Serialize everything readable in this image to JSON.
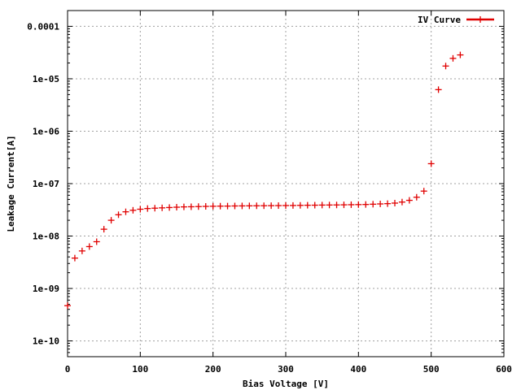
{
  "chart_data": {
    "type": "scatter",
    "title": "",
    "xlabel": "Bias Voltage [V]",
    "ylabel": "Leakage Current[A]",
    "xlim": [
      0,
      600
    ],
    "ylim": [
      5e-11,
      0.0002
    ],
    "yscale": "log",
    "grid": true,
    "legend_position": "top-right",
    "x_ticks": [
      0,
      100,
      200,
      300,
      400,
      500,
      600
    ],
    "x_tick_labels": [
      "0",
      "100",
      "200",
      "300",
      "400",
      "500",
      "600"
    ],
    "y_ticks": [
      1e-10,
      1e-09,
      1e-08,
      1e-07,
      1e-06,
      1e-05,
      0.0001
    ],
    "y_tick_labels": [
      "1e-10",
      "1e-09",
      "1e-08",
      "1e-07",
      "1e-06",
      "1e-05",
      "0.0001"
    ],
    "series": [
      {
        "name": "IV Curve",
        "color": "#e00000",
        "x": [
          0,
          10,
          20,
          30,
          40,
          50,
          60,
          70,
          80,
          90,
          100,
          110,
          120,
          130,
          140,
          150,
          160,
          170,
          180,
          190,
          200,
          210,
          220,
          230,
          240,
          250,
          260,
          270,
          280,
          290,
          300,
          310,
          320,
          330,
          340,
          350,
          360,
          370,
          380,
          390,
          400,
          410,
          420,
          430,
          440,
          450,
          460,
          470,
          480,
          490,
          500,
          510,
          520,
          530,
          540
        ],
        "y": [
          4.7e-10,
          3.8e-09,
          5.2e-09,
          6.3e-09,
          7.8e-09,
          1.35e-08,
          2e-08,
          2.55e-08,
          2.9e-08,
          3.1e-08,
          3.25e-08,
          3.35e-08,
          3.4e-08,
          3.45e-08,
          3.5e-08,
          3.55e-08,
          3.6e-08,
          3.62e-08,
          3.65e-08,
          3.68e-08,
          3.7e-08,
          3.72e-08,
          3.73e-08,
          3.75e-08,
          3.76e-08,
          3.77e-08,
          3.78e-08,
          3.79e-08,
          3.8e-08,
          3.81e-08,
          3.82e-08,
          3.83e-08,
          3.85e-08,
          3.87e-08,
          3.88e-08,
          3.9e-08,
          3.91e-08,
          3.92e-08,
          3.94e-08,
          3.96e-08,
          3.98e-08,
          4e-08,
          4.05e-08,
          4.1e-08,
          4.15e-08,
          4.25e-08,
          4.45e-08,
          4.8e-08,
          5.5e-08,
          7.2e-08,
          2.4e-07,
          6.2e-06,
          1.75e-05,
          2.45e-05,
          2.85e-05
        ]
      }
    ]
  }
}
